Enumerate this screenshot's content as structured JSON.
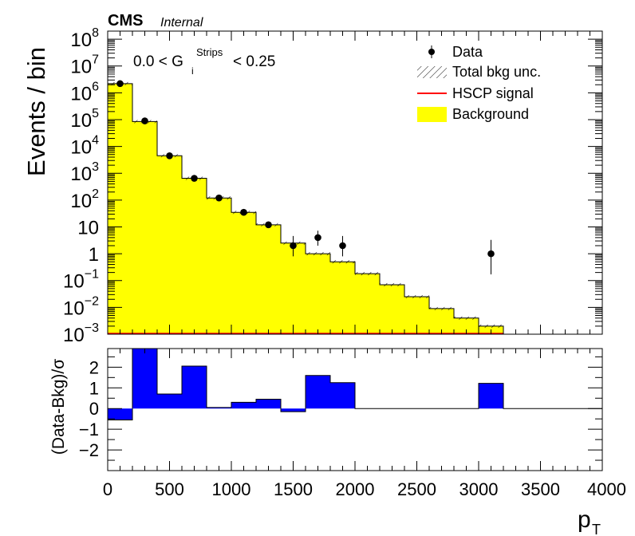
{
  "header": {
    "experiment": "CMS",
    "status": "Internal"
  },
  "annotation": {
    "prefix": "0.0 < G",
    "subscript": "i",
    "superscript": "Strips",
    "suffix": "< 0.25"
  },
  "legend": {
    "placement": "top-right",
    "items": [
      {
        "label": "Data",
        "style": "marker",
        "color": "#000000"
      },
      {
        "label": "Total bkg unc.",
        "style": "hatch",
        "color": "#000000"
      },
      {
        "label": "HSCP signal",
        "style": "line",
        "color": "#ff0000"
      },
      {
        "label": "Background",
        "style": "fill",
        "color": "#ffff00"
      }
    ]
  },
  "colors": {
    "background_fill": "#ffff00",
    "ratio_fill": "#0000ff",
    "signal_line": "#ff0000"
  },
  "chart_data": [
    {
      "type": "bar",
      "subtype": "stacked-histogram-with-data-points",
      "title": "",
      "xlabel": "",
      "ylabel": "Events / bin",
      "yscale": "log",
      "xlim": [
        0,
        4000
      ],
      "ylim": [
        0.001,
        200000000
      ],
      "y_tick_labels": [
        {
          "value": 0.001,
          "base": "10",
          "exp": "−3"
        },
        {
          "value": 0.01,
          "base": "10",
          "exp": "−2"
        },
        {
          "value": 0.1,
          "base": "10",
          "exp": "−1"
        },
        {
          "value": 1,
          "base": "1",
          "exp": ""
        },
        {
          "value": 10,
          "base": "10",
          "exp": ""
        },
        {
          "value": 100,
          "base": "10",
          "exp": "2"
        },
        {
          "value": 1000,
          "base": "10",
          "exp": "3"
        },
        {
          "value": 10000,
          "base": "10",
          "exp": "4"
        },
        {
          "value": 100000,
          "base": "10",
          "exp": "5"
        },
        {
          "value": 1000000,
          "base": "10",
          "exp": "6"
        },
        {
          "value": 10000000,
          "base": "10",
          "exp": "7"
        },
        {
          "value": 100000000,
          "base": "10",
          "exp": "8"
        }
      ],
      "bin_edges": [
        0,
        200,
        400,
        600,
        800,
        1000,
        1200,
        1400,
        1600,
        1800,
        2000,
        2200,
        2400,
        2600,
        2800,
        3000,
        3200
      ],
      "series": [
        {
          "name": "Background",
          "kind": "filled-histogram",
          "values": [
            2200000,
            85000,
            4500,
            650,
            120,
            35,
            12,
            2.5,
            1.0,
            0.5,
            0.18,
            0.07,
            0.025,
            0.009,
            0.004,
            0.002
          ]
        },
        {
          "name": "Data",
          "kind": "points",
          "x": [
            100,
            300,
            500,
            700,
            900,
            1100,
            1300,
            1500,
            1700,
            1900,
            3100
          ],
          "y": [
            2200000,
            90000,
            4500,
            650,
            120,
            35,
            12,
            2,
            4,
            2,
            1
          ],
          "err_low": [
            0,
            0,
            0,
            0,
            0,
            0,
            0,
            1.2,
            2,
            1.2,
            0.83
          ],
          "err_high": [
            0,
            0,
            0,
            0,
            0,
            0,
            0,
            2.6,
            3.2,
            2.6,
            2.3
          ]
        },
        {
          "name": "HSCP signal",
          "kind": "line",
          "values": [
            0.001,
            0.001,
            0.001,
            0.001,
            0.001,
            0.001,
            0.001,
            0.001,
            0.001,
            0.001,
            0.001,
            0.001,
            0.001,
            0.001,
            0.001,
            0.001
          ]
        }
      ]
    },
    {
      "type": "bar",
      "subtype": "ratio-panel",
      "title": "",
      "xlabel": "p",
      "xlabel_subscript": "T",
      "ylabel": "(Data-Bkg)/σ",
      "xlim": [
        0,
        4000
      ],
      "ylim": [
        -3,
        2.9
      ],
      "x_ticks": [
        0,
        500,
        1000,
        1500,
        2000,
        2500,
        3000,
        3500,
        4000
      ],
      "x_tick_labels": [
        "0",
        "500",
        "1000",
        "1500",
        "2000",
        "2500",
        "3000",
        "3500",
        "4000"
      ],
      "y_ticks": [
        -2,
        -1,
        0,
        1,
        2
      ],
      "y_tick_labels": [
        "−2",
        "−1",
        "0",
        "1",
        "2"
      ],
      "bin_edges": [
        0,
        200,
        400,
        600,
        800,
        1000,
        1200,
        1400,
        1600,
        1800,
        2000,
        2200,
        2400,
        2600,
        2800,
        3000,
        3200,
        3400,
        3600,
        3800,
        4000
      ],
      "values": [
        -0.55,
        3.2,
        0.7,
        2.05,
        0.05,
        0.3,
        0.45,
        -0.15,
        1.6,
        1.25,
        0,
        0,
        0,
        0,
        0,
        1.22,
        0,
        0,
        0,
        0
      ]
    }
  ]
}
